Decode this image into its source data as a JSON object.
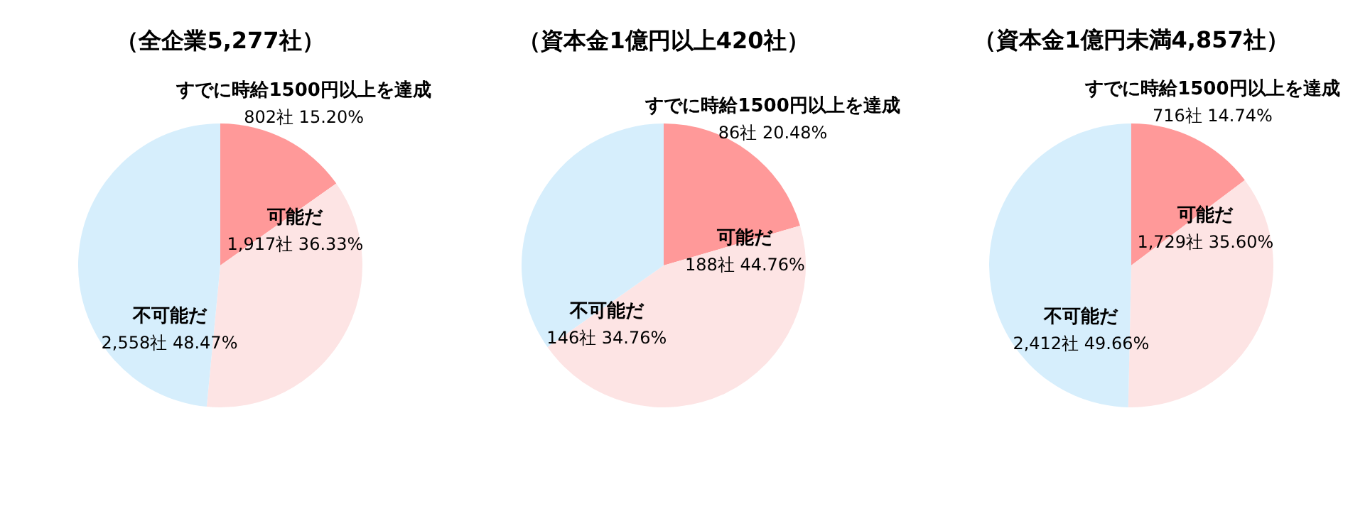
{
  "chart_data": [
    {
      "type": "pie",
      "title": "（全企業5,277社）",
      "categories": [
        "すでに時給1500円以上を達成",
        "可能だ",
        "不可能だ"
      ],
      "values": [
        802,
        1917,
        2558
      ],
      "colors": [
        "#ff9999",
        "#fde4e4",
        "#d6eefc"
      ],
      "value_labels": [
        "802社 15.20%",
        "1,917社 36.33%",
        "2,558社 48.47%"
      ],
      "legend": false
    },
    {
      "type": "pie",
      "title": "（資本金1億円以上420社）",
      "categories": [
        "すでに時給1500円以上を達成",
        "可能だ",
        "不可能だ"
      ],
      "values": [
        86,
        188,
        146
      ],
      "colors": [
        "#ff9999",
        "#fde4e4",
        "#d6eefc"
      ],
      "value_labels": [
        "86社 20.48%",
        "188社 44.76%",
        "146社 34.76%"
      ],
      "legend": false
    },
    {
      "type": "pie",
      "title": "（資本金1億円未満4,857社）",
      "categories": [
        "すでに時給1500円以上を達成",
        "可能だ",
        "不可能だ"
      ],
      "values": [
        716,
        1729,
        2412
      ],
      "colors": [
        "#ff9999",
        "#fde4e4",
        "#d6eefc"
      ],
      "value_labels": [
        "716社 14.74%",
        "1,729社 35.60%",
        "2,412社 49.66%"
      ],
      "legend": false
    }
  ]
}
